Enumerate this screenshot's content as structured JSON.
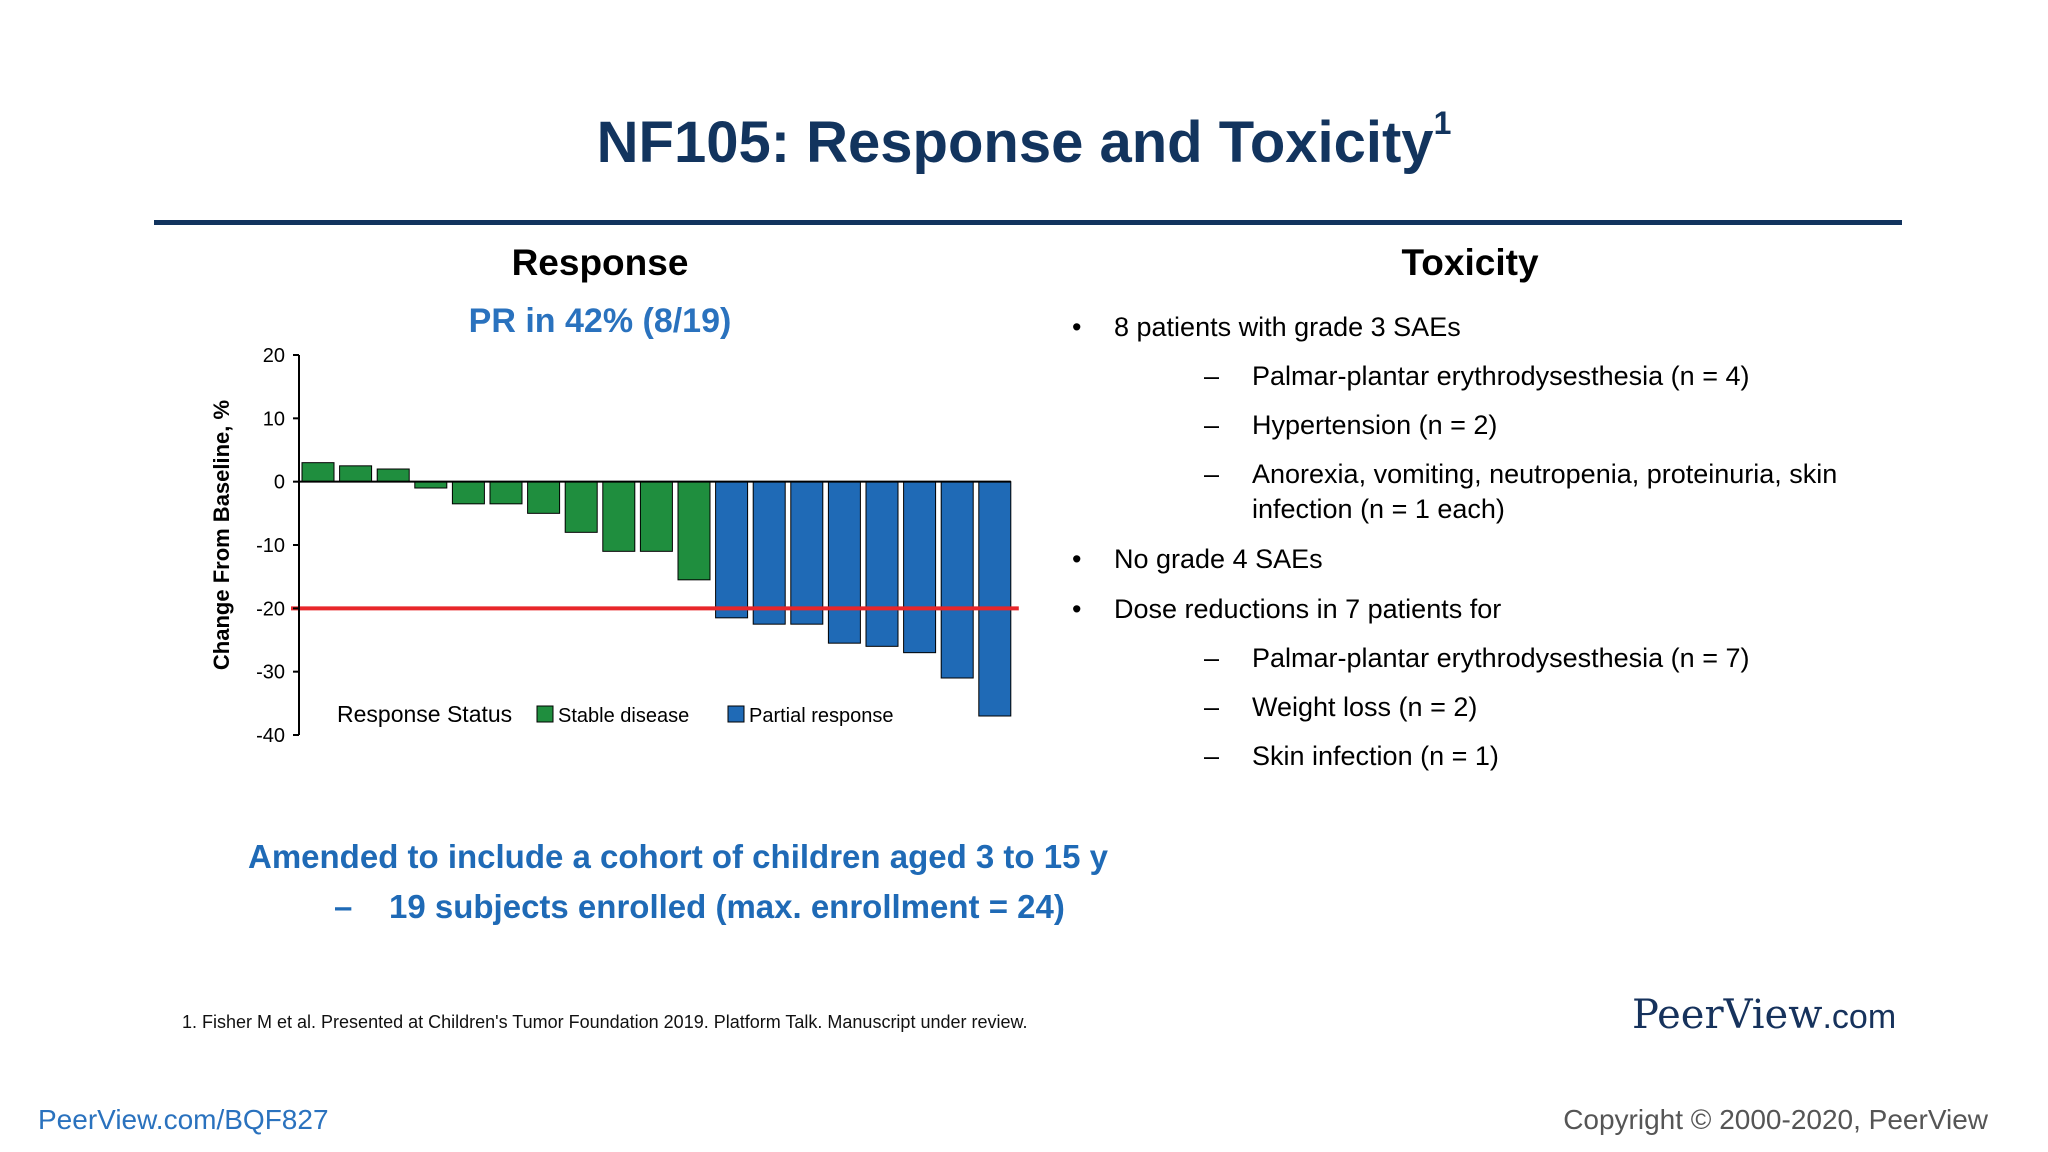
{
  "slide": {
    "title": "NF105: Response and Toxicity",
    "title_superscript": "1"
  },
  "response": {
    "heading": "Response",
    "summary": "PR in 42% (8/19)"
  },
  "chart_data": {
    "type": "bar",
    "ylabel": "Change From Baseline, %",
    "ylim": [
      -40,
      20
    ],
    "yticks": [
      "20",
      "10",
      "0",
      "-10",
      "-20",
      "-30",
      "-40"
    ],
    "reference_line": {
      "y": -20,
      "color": "#e8262a"
    },
    "legend": {
      "title": "Response Status",
      "placement": "bottom-left",
      "entries": [
        {
          "name": "Stable disease",
          "color": "#1f8e3e"
        },
        {
          "name": "Partial response",
          "color": "#1f6ab6"
        }
      ]
    },
    "series": [
      {
        "name": "Stable disease",
        "color": "#1f8e3e",
        "values": [
          3,
          2.5,
          2,
          -1,
          -3.5,
          -3.5,
          -5,
          -8,
          -11,
          -11,
          -15.5
        ]
      },
      {
        "name": "Partial response",
        "color": "#1f6ab6",
        "values": [
          -21.5,
          -22.5,
          -22.5,
          -25.5,
          -26,
          -27,
          -31,
          -37
        ]
      }
    ]
  },
  "toxicity": {
    "heading": "Toxicity",
    "items": [
      {
        "text": "8 patients with grade 3 SAEs",
        "subitems": [
          "Palmar-plantar erythrodysesthesia (n = 4)",
          "Hypertension (n = 2)",
          "Anorexia, vomiting, neutropenia, proteinuria, skin infection (n = 1 each)"
        ]
      },
      {
        "text": "No grade 4 SAEs",
        "subitems": []
      },
      {
        "text": "Dose reductions in 7 patients for",
        "subitems": [
          "Palmar-plantar erythrodysesthesia (n = 7)",
          "Weight loss (n = 2)",
          "Skin infection (n = 1)"
        ]
      }
    ]
  },
  "cohort": {
    "line1": "Amended to include a cohort of children aged 3 to 15 y",
    "dash": "–",
    "line2": "19 subjects enrolled (max. enrollment = 24)"
  },
  "footnote": "1. Fisher M et al. Presented at Children's Tumor Foundation 2019. Platform Talk. Manuscript under review.",
  "brand": {
    "name": "PeerView",
    "suffix": ".com"
  },
  "footer": {
    "link": "PeerView.com/BQF827",
    "copyright": "Copyright © 2000-2020, PeerView"
  },
  "colors": {
    "title": "#12345e",
    "accent_blue": "#2a72be"
  }
}
